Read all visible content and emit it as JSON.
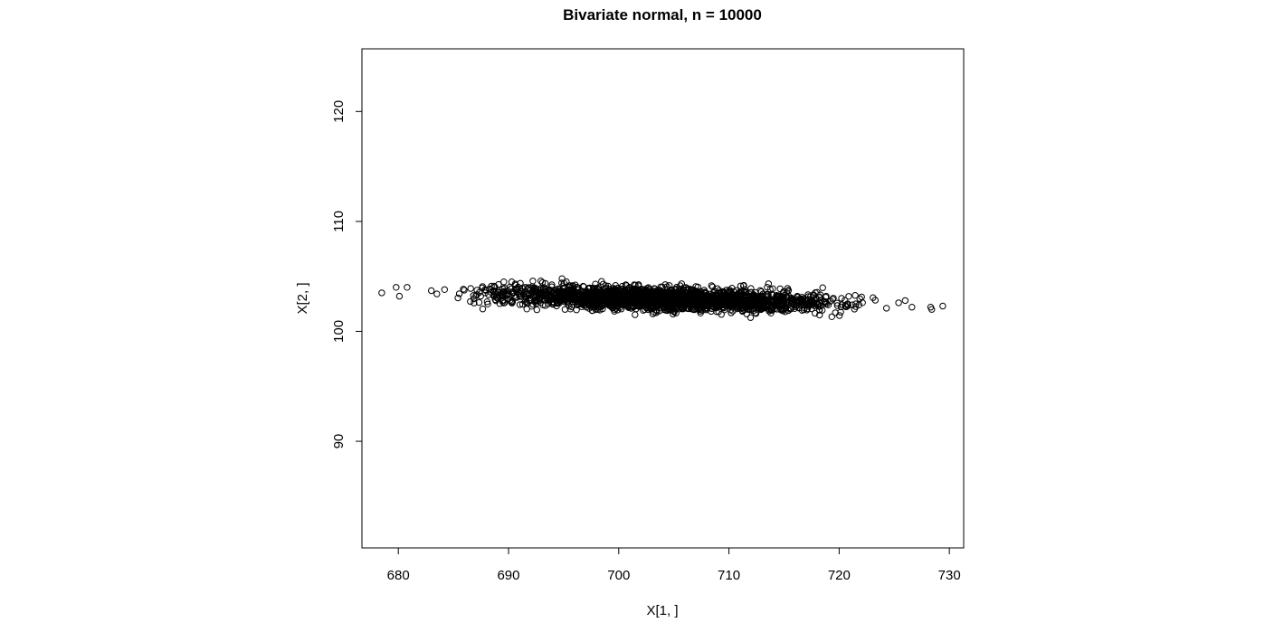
{
  "chart_data": {
    "type": "scatter",
    "title": "Bivariate normal, n = 10000",
    "xlabel": "X[1, ]",
    "ylabel": "X[2, ]",
    "xlim": [
      676.7,
      731.3
    ],
    "ylim": [
      80.3,
      125.7
    ],
    "xticks": [
      680,
      690,
      700,
      710,
      720,
      730
    ],
    "yticks": [
      90,
      100,
      110,
      120
    ],
    "xtick_labels": [
      "680",
      "690",
      "700",
      "710",
      "720",
      "730"
    ],
    "ytick_labels": [
      "90",
      "100",
      "110",
      "120"
    ],
    "grid": false,
    "n": 10000,
    "marker": "open-circle",
    "distribution": {
      "mean_x": 704.0,
      "mean_y": 102.95,
      "sd_x": 7.2,
      "sd_y": 0.48,
      "slope": -0.026
    },
    "outliers": [
      {
        "x": 678.5,
        "y": 103.5
      },
      {
        "x": 679.8,
        "y": 104.0
      },
      {
        "x": 680.1,
        "y": 103.2
      },
      {
        "x": 680.8,
        "y": 104.0
      },
      {
        "x": 683.0,
        "y": 103.7
      },
      {
        "x": 683.5,
        "y": 103.4
      },
      {
        "x": 684.2,
        "y": 103.8
      },
      {
        "x": 724.3,
        "y": 102.1
      },
      {
        "x": 725.4,
        "y": 102.6
      },
      {
        "x": 726.0,
        "y": 102.8
      },
      {
        "x": 726.6,
        "y": 102.2
      },
      {
        "x": 728.3,
        "y": 102.2
      },
      {
        "x": 728.4,
        "y": 102.0
      },
      {
        "x": 729.4,
        "y": 102.3
      }
    ]
  }
}
